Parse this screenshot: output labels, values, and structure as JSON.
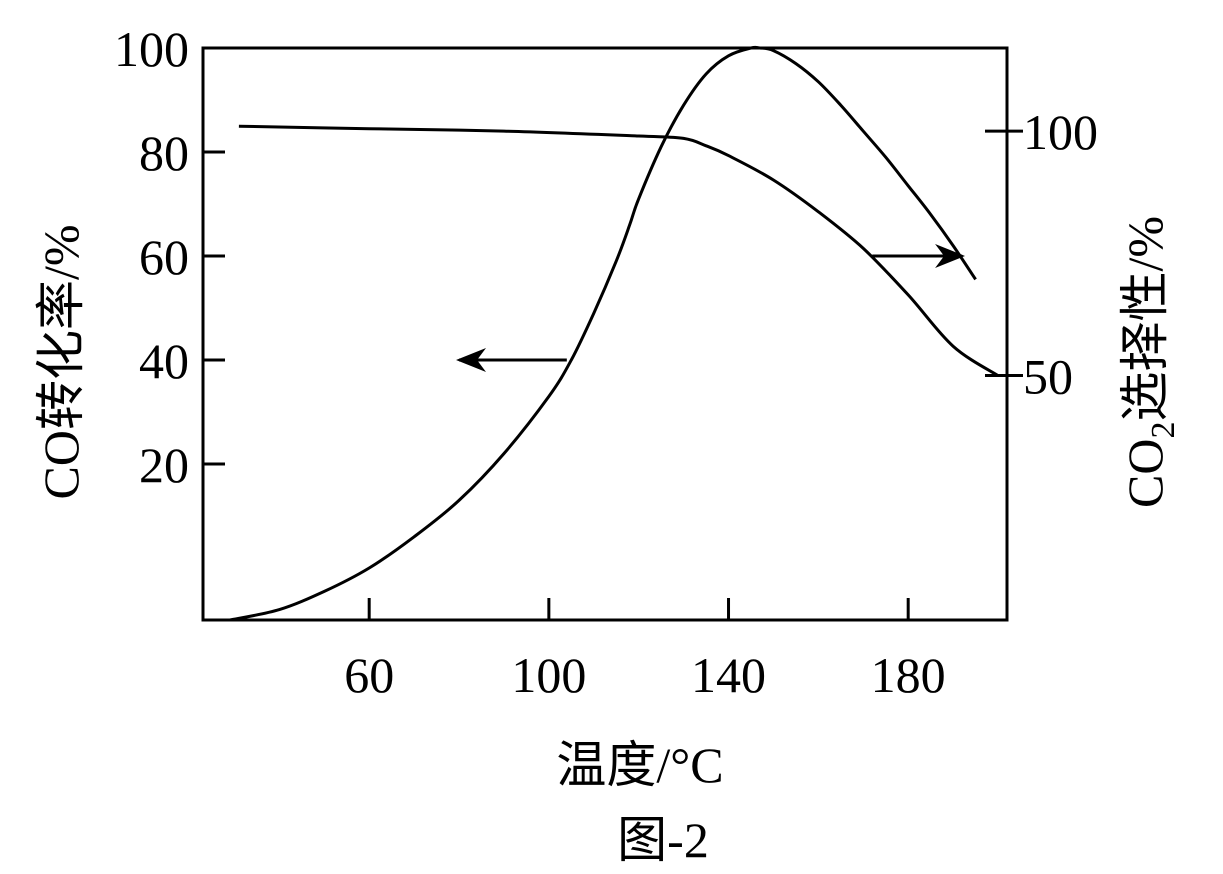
{
  "chart_data": {
    "type": "line",
    "caption": "图-2",
    "xlabel": "温度/°C",
    "ylabel_left": "CO转化率/%",
    "ylabel_right_parts": [
      "CO",
      "2",
      "选择性/%"
    ],
    "x_ticks": [
      60,
      100,
      140,
      180
    ],
    "y_left_ticks": [
      20,
      40,
      60,
      80,
      100
    ],
    "y_right_ticks": [
      50,
      100
    ],
    "xlim": [
      23,
      202
    ],
    "ylim_left": [
      -10,
      100
    ],
    "ylim_right": [
      0,
      117
    ],
    "series": [
      {
        "axis": "left",
        "x": [
          29,
          40,
          50,
          60,
          70,
          80,
          90,
          100,
          105,
          110,
          115,
          118,
          120,
          125,
          130,
          135,
          140,
          145,
          147,
          150,
          155,
          160,
          165,
          170,
          175,
          180,
          185,
          190,
          195
        ],
        "y": [
          -10,
          -8,
          -4.5,
          0,
          6,
          13,
          22,
          33,
          40,
          49,
          59,
          66,
          71,
          81,
          89,
          95,
          98.5,
          100,
          100,
          99.5,
          97,
          93.5,
          89,
          84,
          79,
          73.5,
          68,
          62,
          55.5
        ]
      },
      {
        "axis": "right",
        "x": [
          31,
          60,
          90,
          120,
          130,
          135,
          140,
          150,
          160,
          170,
          180,
          190,
          200
        ],
        "y": [
          101,
          100.5,
          100,
          99,
          98.5,
          97,
          95,
          90,
          83.5,
          76,
          66.5,
          56,
          50
        ]
      }
    ],
    "annotations": [
      {
        "type": "arrow",
        "from": [
          104,
          40
        ],
        "to": [
          80,
          40
        ],
        "axis": "left",
        "meaning": "left-axis series"
      },
      {
        "type": "arrow",
        "from": [
          172,
          60
        ],
        "to": [
          192,
          60
        ],
        "axis": "left",
        "meaning": "right-axis series"
      }
    ],
    "grid": false,
    "legend": "none"
  }
}
